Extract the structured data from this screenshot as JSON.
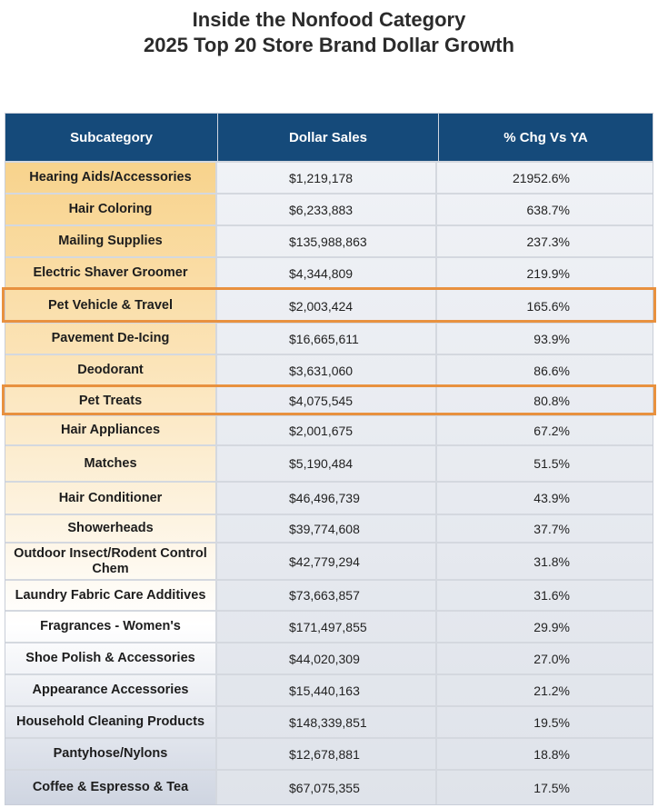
{
  "title_line1": "Inside the Nonfood Category",
  "title_line2": "2025 Top 20 Store Brand Dollar Growth",
  "colors": {
    "header": "#154a7a",
    "highlight_border": "#e8913f",
    "subcategory_top": "#f8d38c"
  },
  "chart_data": {
    "type": "table",
    "columns": [
      "Subcategory",
      "Dollar Sales",
      "% Chg Vs YA"
    ],
    "rows": [
      {
        "subcategory": "Hearing Aids/Accessories",
        "sales": "$1,219,178",
        "chg": "21952.6%",
        "highlighted": false
      },
      {
        "subcategory": "Hair Coloring",
        "sales": "$6,233,883",
        "chg": "638.7%",
        "highlighted": false
      },
      {
        "subcategory": "Mailing Supplies",
        "sales": "$135,988,863",
        "chg": "237.3%",
        "highlighted": false
      },
      {
        "subcategory": "Electric Shaver Groomer",
        "sales": "$4,344,809",
        "chg": "219.9%",
        "highlighted": false
      },
      {
        "subcategory": "Pet Vehicle & Travel",
        "sales": "$2,003,424",
        "chg": "165.6%",
        "highlighted": true
      },
      {
        "subcategory": "Pavement De-Icing",
        "sales": "$16,665,611",
        "chg": "93.9%",
        "highlighted": false
      },
      {
        "subcategory": "Deodorant",
        "sales": "$3,631,060",
        "chg": "86.6%",
        "highlighted": false
      },
      {
        "subcategory": "Pet Treats",
        "sales": "$4,075,545",
        "chg": "80.8%",
        "highlighted": true
      },
      {
        "subcategory": "Hair Appliances",
        "sales": "$2,001,675",
        "chg": "67.2%",
        "highlighted": false
      },
      {
        "subcategory": "Matches",
        "sales": "$5,190,484",
        "chg": "51.5%",
        "highlighted": false
      },
      {
        "subcategory": "Hair Conditioner",
        "sales": "$46,496,739",
        "chg": "43.9%",
        "highlighted": false
      },
      {
        "subcategory": "Showerheads",
        "sales": "$39,774,608",
        "chg": "37.7%",
        "highlighted": false
      },
      {
        "subcategory": "Outdoor Insect/Rodent Control Chem",
        "sales": "$42,779,294",
        "chg": "31.8%",
        "highlighted": false
      },
      {
        "subcategory": "Laundry Fabric Care Additives",
        "sales": "$73,663,857",
        "chg": "31.6%",
        "highlighted": false
      },
      {
        "subcategory": "Fragrances - Women's",
        "sales": "$171,497,855",
        "chg": "29.9%",
        "highlighted": false
      },
      {
        "subcategory": "Shoe Polish & Accessories",
        "sales": "$44,020,309",
        "chg": "27.0%",
        "highlighted": false
      },
      {
        "subcategory": "Appearance Accessories",
        "sales": "$15,440,163",
        "chg": "21.2%",
        "highlighted": false
      },
      {
        "subcategory": "Household Cleaning Products",
        "sales": "$148,339,851",
        "chg": "19.5%",
        "highlighted": false
      },
      {
        "subcategory": "Pantyhose/Nylons",
        "sales": "$12,678,881",
        "chg": "18.8%",
        "highlighted": false
      },
      {
        "subcategory": "Coffee & Espresso & Tea",
        "sales": "$67,075,355",
        "chg": "17.5%",
        "highlighted": false
      }
    ]
  }
}
